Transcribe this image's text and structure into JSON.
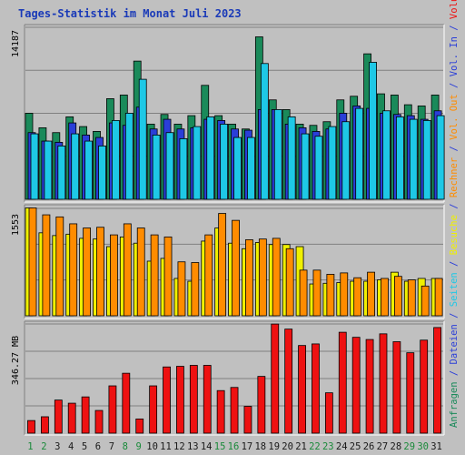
{
  "chart_data": [
    {
      "type": "bar",
      "title": "Tages-Statistik im Monat Juli 2023",
      "max_label": "14187",
      "ylim": [
        0,
        14187
      ],
      "grid": true,
      "categories": [
        "1",
        "2",
        "3",
        "4",
        "5",
        "6",
        "7",
        "8",
        "9",
        "10",
        "11",
        "12",
        "13",
        "14",
        "15",
        "16",
        "17",
        "18",
        "19",
        "20",
        "21",
        "22",
        "23",
        "24",
        "25",
        "26",
        "27",
        "28",
        "29",
        "30",
        "31"
      ],
      "weekend_days": [
        "1",
        "2",
        "8",
        "9",
        "15",
        "16",
        "22",
        "23",
        "29",
        "30"
      ],
      "series": [
        {
          "name": "Anfragen",
          "color": "#1a8a5a",
          "values": [
            7100,
            5900,
            5500,
            6800,
            6000,
            5600,
            8300,
            8600,
            11400,
            6200,
            7000,
            6200,
            6900,
            9400,
            6900,
            6200,
            5800,
            13400,
            8200,
            7400,
            6200,
            6100,
            6400,
            8200,
            8500,
            12000,
            8700,
            8600,
            7800,
            7700,
            8600
          ]
        },
        {
          "name": "Dateien",
          "color": "#2a3ed8",
          "values": [
            5500,
            4800,
            4700,
            6300,
            5300,
            5100,
            6300,
            6100,
            7600,
            5800,
            6600,
            5800,
            5900,
            6600,
            6500,
            5800,
            5700,
            7400,
            7400,
            6200,
            5900,
            5600,
            5800,
            7100,
            7700,
            7500,
            7100,
            7000,
            6900,
            6600,
            7300
          ]
        },
        {
          "name": "Seiten",
          "color": "#1ec8e6",
          "values": [
            5400,
            4800,
            4400,
            5400,
            4800,
            4400,
            6500,
            7100,
            9900,
            5300,
            5500,
            5000,
            6000,
            6800,
            6200,
            5100,
            5100,
            11200,
            7400,
            6800,
            5400,
            5200,
            6000,
            6400,
            7500,
            11300,
            7300,
            6800,
            6600,
            6500,
            6900
          ]
        }
      ]
    },
    {
      "type": "bar",
      "max_label": "1553",
      "ylim": [
        0,
        1553
      ],
      "grid": true,
      "categories": [
        "1",
        "2",
        "3",
        "4",
        "5",
        "6",
        "7",
        "8",
        "9",
        "10",
        "11",
        "12",
        "13",
        "14",
        "15",
        "16",
        "17",
        "18",
        "19",
        "20",
        "21",
        "22",
        "23",
        "24",
        "25",
        "26",
        "27",
        "28",
        "29",
        "30",
        "31"
      ],
      "series": [
        {
          "name": "Besuche",
          "color": "#f0f000",
          "values": [
            1560,
            1200,
            1160,
            1180,
            1120,
            1110,
            1000,
            1140,
            1050,
            790,
            830,
            540,
            500,
            1080,
            1270,
            1050,
            970,
            1060,
            1030,
            1030,
            1000,
            460,
            470,
            480,
            500,
            500,
            520,
            630,
            500,
            540,
            540
          ]
        },
        {
          "name": "Rechner",
          "color": "#ff8c00",
          "values": [
            1560,
            1460,
            1430,
            1330,
            1270,
            1280,
            1170,
            1330,
            1270,
            1170,
            1140,
            780,
            770,
            1170,
            1480,
            1380,
            1100,
            1110,
            1120,
            970,
            660,
            660,
            600,
            620,
            550,
            630,
            540,
            570,
            520,
            430,
            540
          ]
        }
      ]
    },
    {
      "type": "bar",
      "max_label": "346.27 MB",
      "ylim": [
        0,
        346.27
      ],
      "unit": "MB",
      "grid": true,
      "categories": [
        "1",
        "2",
        "3",
        "4",
        "5",
        "6",
        "7",
        "8",
        "9",
        "10",
        "11",
        "12",
        "13",
        "14",
        "15",
        "16",
        "17",
        "18",
        "19",
        "20",
        "21",
        "22",
        "23",
        "24",
        "25",
        "26",
        "27",
        "28",
        "29",
        "30",
        "31"
      ],
      "series": [
        {
          "name": "Volumen",
          "color": "#ee1111",
          "values": [
            40,
            52,
            105,
            95,
            115,
            72,
            150,
            190,
            45,
            150,
            210,
            212,
            215,
            215,
            135,
            145,
            85,
            180,
            346,
            330,
            278,
            283,
            128,
            320,
            304,
            297,
            315,
            290,
            255,
            295,
            335
          ]
        }
      ]
    }
  ],
  "right_axis_labels": [
    {
      "text": "Anfragen",
      "color": "#1a8a5a"
    },
    {
      "text": " / ",
      "color": "#2a3ed8"
    },
    {
      "text": "Dateien",
      "color": "#2a3ed8"
    },
    {
      "text": " / ",
      "color": "#2a3ed8"
    },
    {
      "text": "Seiten",
      "color": "#1ec8e6"
    },
    {
      "text": " / ",
      "color": "#2a3ed8"
    },
    {
      "text": "Besuche",
      "color": "#f0f000"
    },
    {
      "text": " / ",
      "color": "#2a3ed8"
    },
    {
      "text": "Rechner",
      "color": "#ff8c00"
    },
    {
      "text": " / ",
      "color": "#2a3ed8"
    },
    {
      "text": "Vol. Out",
      "color": "#ff8c00"
    },
    {
      "text": " / ",
      "color": "#2a3ed8"
    },
    {
      "text": "Vol. In",
      "color": "#2a3ed8"
    },
    {
      "text": " / ",
      "color": "#2a3ed8"
    },
    {
      "text": "Volumen",
      "color": "#ee1111"
    }
  ],
  "colors": {
    "background": "#c0c0c0",
    "title": "#1a3ab8",
    "frame_light": "#ffffff",
    "frame_dark": "#808080",
    "grid": "#808080",
    "weekday_label": "#1a1a1a",
    "weekend_label": "#1a8a3a"
  }
}
